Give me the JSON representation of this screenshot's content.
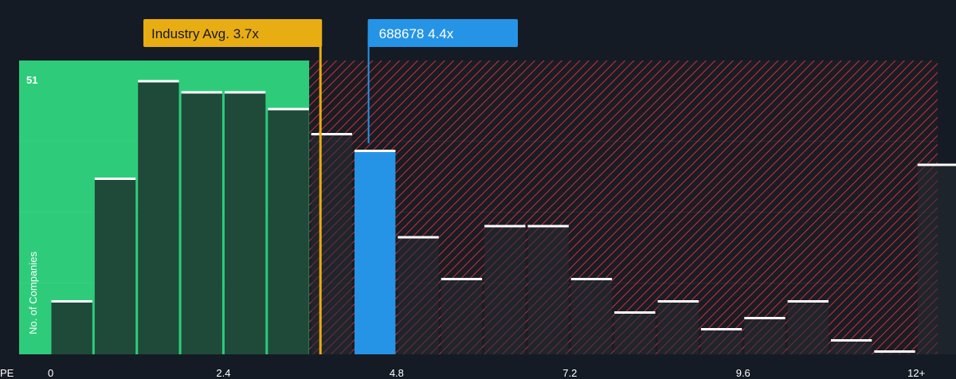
{
  "chart_data": {
    "type": "bar",
    "title": "",
    "xlabel": "PE",
    "ylabel": "No. of Companies",
    "y_max_label": "51",
    "ylim": [
      0,
      51
    ],
    "x_tick_labels": [
      {
        "value": 0,
        "label": "0"
      },
      {
        "value": 2.4,
        "label": "2.4"
      },
      {
        "value": 4.8,
        "label": "4.8"
      },
      {
        "value": 7.2,
        "label": "7.2"
      },
      {
        "value": 9.6,
        "label": "9.6"
      },
      {
        "value": 12,
        "label": "12+"
      }
    ],
    "bin_width": 0.6,
    "bins": [
      {
        "x": 0.3,
        "count": 9.5,
        "status": "undervalued"
      },
      {
        "x": 0.9,
        "count": 31.5,
        "status": "undervalued"
      },
      {
        "x": 1.5,
        "count": 49,
        "status": "undervalued"
      },
      {
        "x": 2.1,
        "count": 47,
        "status": "undervalued"
      },
      {
        "x": 2.7,
        "count": 47,
        "status": "undervalued"
      },
      {
        "x": 3.3,
        "count": 44,
        "status": "undervalued"
      },
      {
        "x": 3.9,
        "count": 39.5,
        "status": "overvalued"
      },
      {
        "x": 4.5,
        "count": 36.5,
        "status": "company"
      },
      {
        "x": 5.1,
        "count": 21,
        "status": "overvalued"
      },
      {
        "x": 5.7,
        "count": 13.5,
        "status": "overvalued"
      },
      {
        "x": 6.3,
        "count": 23,
        "status": "overvalued"
      },
      {
        "x": 6.9,
        "count": 23,
        "status": "overvalued"
      },
      {
        "x": 7.5,
        "count": 13.5,
        "status": "overvalued"
      },
      {
        "x": 8.1,
        "count": 7.5,
        "status": "overvalued"
      },
      {
        "x": 8.7,
        "count": 9.5,
        "status": "overvalued"
      },
      {
        "x": 9.3,
        "count": 4.5,
        "status": "overvalued"
      },
      {
        "x": 9.9,
        "count": 6.5,
        "status": "overvalued"
      },
      {
        "x": 10.5,
        "count": 9.5,
        "status": "overvalued"
      },
      {
        "x": 11.1,
        "count": 2.5,
        "status": "overvalued"
      },
      {
        "x": 11.7,
        "count": 0.5,
        "status": "overvalued"
      },
      {
        "x": 12.3,
        "count": 34,
        "status": "overvalued"
      }
    ],
    "industry_avg": {
      "label": "Industry Avg. 3.7x",
      "value": 3.7
    },
    "company": {
      "label": "688678 4.4x",
      "value": 4.4
    },
    "colors": {
      "background": "#151b24",
      "undervalued_zone": "#2ecc7a",
      "undervalued_bar": "#1f4a3a",
      "overvalued_hatch": "#d0363f",
      "overvalued_bar": "#262b33",
      "company_bar": "#2694e6",
      "industry_avg": "#e9ad14",
      "bar_cap": "#ffffff",
      "tick_text": "#ffffff"
    }
  }
}
